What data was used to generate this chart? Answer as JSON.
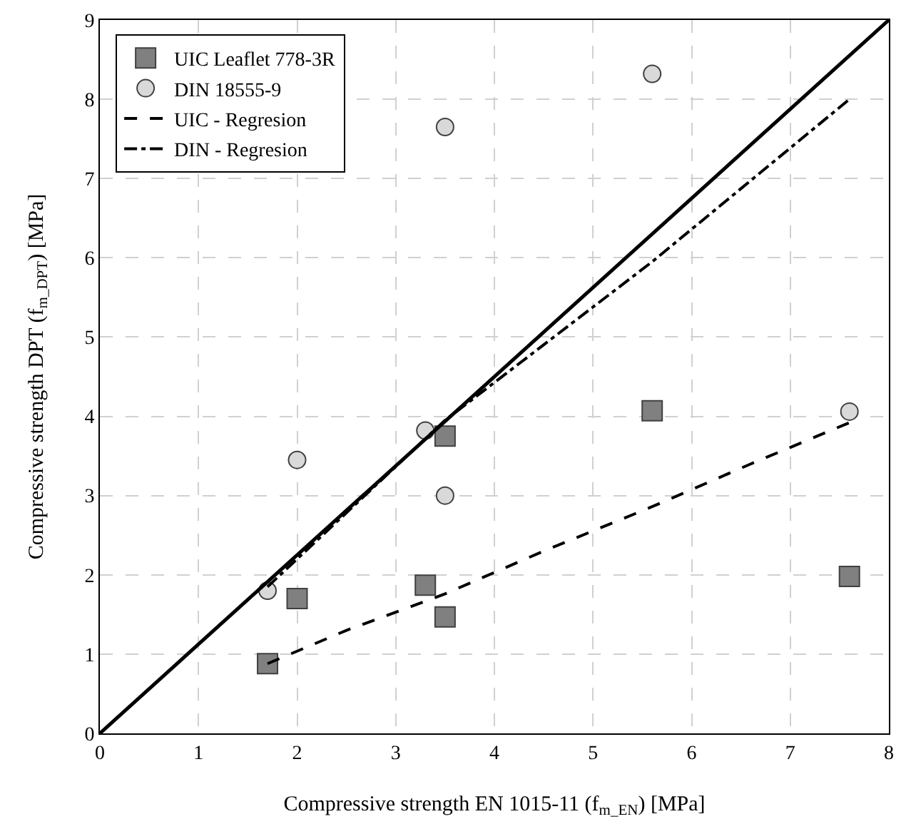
{
  "chart_data": {
    "type": "scatter",
    "xlabel": "Compressive strength EN 1015-11 (f$_{m_EN}$) [MPa]",
    "ylabel": "Compressive strength DPT (f$_{m_DPT}$) [MPa]",
    "xlim": [
      0,
      8
    ],
    "ylim": [
      0,
      9
    ],
    "xticks": [
      0,
      1,
      2,
      3,
      4,
      5,
      6,
      7,
      8
    ],
    "yticks": [
      0,
      1,
      2,
      3,
      4,
      5,
      6,
      7,
      8,
      9
    ],
    "grid": true,
    "legend": "top left",
    "series": [
      {
        "name": "UIC Leaflet 778-3R",
        "type": "scatter",
        "marker": "square",
        "color": "#808080",
        "x": [
          1.7,
          2.0,
          3.3,
          3.5,
          3.5,
          5.6,
          7.6
        ],
        "values": [
          0.88,
          1.7,
          1.87,
          1.47,
          3.75,
          4.07,
          1.98
        ]
      },
      {
        "name": "DIN 18555-9",
        "type": "scatter",
        "marker": "circle",
        "color": "#d9d9d9",
        "x": [
          1.7,
          2.0,
          3.3,
          3.5,
          3.5,
          5.6,
          7.6
        ],
        "values": [
          1.8,
          3.45,
          3.82,
          3.0,
          7.65,
          8.32,
          4.06
        ]
      },
      {
        "name": "UIC - Regresion",
        "type": "line",
        "line_style": "dashed",
        "color": "#000000",
        "x": [
          1.7,
          2.5,
          3.5,
          4.5,
          5.6,
          6.6,
          7.6
        ],
        "values": [
          0.88,
          1.3,
          1.76,
          2.3,
          2.86,
          3.4,
          3.92
        ]
      },
      {
        "name": "DIN - Regresion",
        "type": "line",
        "line_style": "dashdot",
        "color": "#000000",
        "x": [
          1.7,
          3.5,
          5.6,
          7.6
        ],
        "values": [
          1.85,
          3.95,
          5.95,
          8.0
        ]
      },
      {
        "type": "line",
        "line_style": "solid",
        "color": "#000000",
        "x": [
          0,
          8
        ],
        "values": [
          0,
          9
        ]
      }
    ]
  }
}
